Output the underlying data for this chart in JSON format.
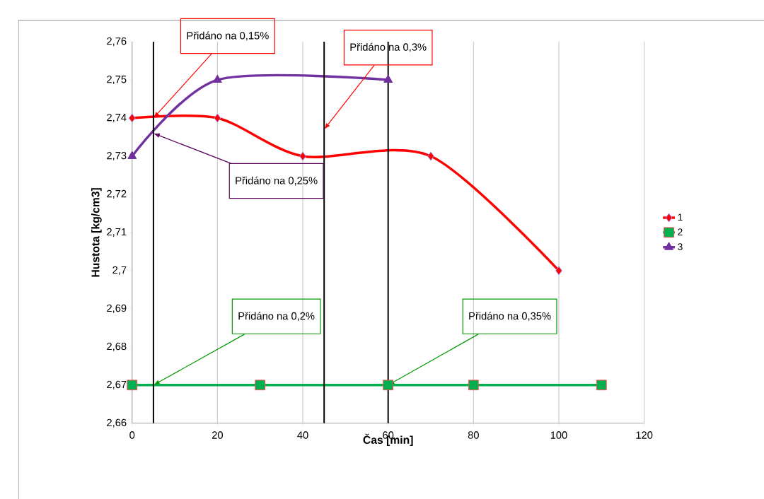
{
  "chart_data": {
    "type": "line",
    "xlabel": "Čas [min]",
    "ylabel": "Hustota [kg/cm3]",
    "xlim": [
      0,
      120
    ],
    "xticks": [
      0,
      20,
      40,
      60,
      80,
      100,
      120
    ],
    "ylim": [
      2.66,
      2.76
    ],
    "yticks": [
      {
        "value": 2.66,
        "label": "2,66"
      },
      {
        "value": 2.67,
        "label": "2,67"
      },
      {
        "value": 2.68,
        "label": "2,68"
      },
      {
        "value": 2.69,
        "label": "2,69"
      },
      {
        "value": 2.7,
        "label": "2,7"
      },
      {
        "value": 2.71,
        "label": "2,71"
      },
      {
        "value": 2.72,
        "label": "2,72"
      },
      {
        "value": 2.73,
        "label": "2,73"
      },
      {
        "value": 2.74,
        "label": "2,74"
      },
      {
        "value": 2.75,
        "label": "2,75"
      },
      {
        "value": 2.76,
        "label": "2,76"
      }
    ],
    "grid": "x",
    "legend": "right",
    "series": [
      {
        "name": "1",
        "color": "#ff0000",
        "marker": "diamond",
        "x": [
          0,
          20,
          40,
          70,
          100
        ],
        "values": [
          2.74,
          2.74,
          2.73,
          2.73,
          2.7
        ]
      },
      {
        "name": "2",
        "color": "#00b050",
        "marker": "square",
        "x": [
          0,
          30,
          60,
          80,
          110
        ],
        "values": [
          2.67,
          2.67,
          2.67,
          2.67,
          2.67
        ]
      },
      {
        "name": "3",
        "color": "#7030a0",
        "marker": "triangle",
        "x": [
          0,
          20,
          60
        ],
        "values": [
          2.73,
          2.75,
          2.75
        ]
      }
    ],
    "ref_lines": [
      {
        "axis": "x",
        "value": 5,
        "color": "#000000"
      },
      {
        "axis": "x",
        "value": 45,
        "color": "#000000"
      },
      {
        "axis": "x",
        "value": 60,
        "color": "#000000"
      }
    ],
    "annotations": [
      {
        "text": "Přidáno na 0,15%",
        "x": 5,
        "y": 2.74
      },
      {
        "text": "Přidáno na 0,3%",
        "x": 45,
        "y": 2.737
      },
      "Přidáno na 0,25%",
      {
        "text": "Přidáno na 0,2%",
        "x": 5,
        "y": 2.67
      },
      {
        "text": "Přidáno na 0,35%",
        "x": 60,
        "y": 2.67
      }
    ]
  }
}
